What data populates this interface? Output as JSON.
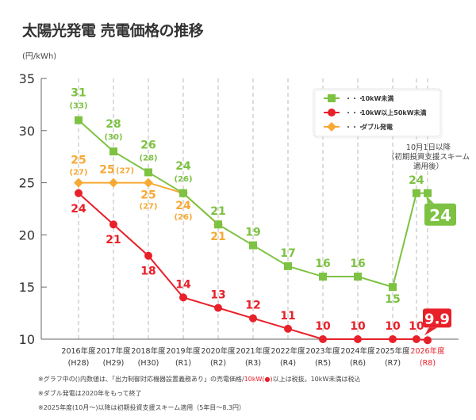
{
  "title": "太陽光発電 売電価格の推移",
  "unit": "(円/kWh)",
  "chart_data": {
    "type": "line",
    "title": "太陽光発電 売電価格の推移",
    "ylabel": "(円/kWh)",
    "ylim": [
      10,
      35
    ],
    "yticks": [
      35,
      30,
      25,
      20,
      15,
      10
    ],
    "grid": "vertical-dashed",
    "legend_position": "top-right",
    "categories": [
      {
        "year": "2016年度",
        "era": "(H28)"
      },
      {
        "year": "2017年度",
        "era": "(H29)"
      },
      {
        "year": "2018年度",
        "era": "(H30)"
      },
      {
        "year": "2019年度",
        "era": "(R1)"
      },
      {
        "year": "2020年度",
        "era": "(R2)"
      },
      {
        "year": "2021年度",
        "era": "(R3)"
      },
      {
        "year": "2022年度",
        "era": "(R4)"
      },
      {
        "year": "2023年度",
        "era": "(R5)"
      },
      {
        "year": "2024年度",
        "era": "(R6)"
      },
      {
        "year": "2025年度",
        "era": "(R7)"
      },
      {
        "year": "2026年度",
        "era": "(R8)",
        "highlight": true
      }
    ],
    "series": [
      {
        "name": "10kW未満",
        "color": "#7dc242",
        "marker": "square",
        "points": [
          {
            "x": 0,
            "y": 31,
            "label": "31",
            "sub": "(33)"
          },
          {
            "x": 1,
            "y": 28,
            "label": "28",
            "sub": "(30)"
          },
          {
            "x": 2,
            "y": 26,
            "label": "26",
            "sub": "(28)"
          },
          {
            "x": 3,
            "y": 24,
            "label": "24",
            "sub": "(26)"
          },
          {
            "x": 4,
            "y": 21,
            "label": "21"
          },
          {
            "x": 5,
            "y": 19,
            "label": "19"
          },
          {
            "x": 6,
            "y": 17,
            "label": "17"
          },
          {
            "x": 7,
            "y": 16,
            "label": "16"
          },
          {
            "x": 8,
            "y": 16,
            "label": "16"
          },
          {
            "x": 9,
            "y": 15,
            "label": "15",
            "label_below": true
          },
          {
            "x": 9.68,
            "y": 24,
            "label": "24"
          },
          {
            "x": 10,
            "y": 24,
            "callout": "24"
          }
        ]
      },
      {
        "name": "10kW以上50kW未満",
        "color": "#e8202a",
        "marker": "circle",
        "points": [
          {
            "x": 0,
            "y": 24,
            "label": "24"
          },
          {
            "x": 1,
            "y": 21,
            "label": "21"
          },
          {
            "x": 2,
            "y": 18,
            "label": "18"
          },
          {
            "x": 3,
            "y": 14,
            "label": "14"
          },
          {
            "x": 4,
            "y": 13,
            "label": "13"
          },
          {
            "x": 5,
            "y": 12,
            "label": "12"
          },
          {
            "x": 6,
            "y": 11,
            "label": "11"
          },
          {
            "x": 7,
            "y": 10,
            "label": "10"
          },
          {
            "x": 8,
            "y": 10,
            "label": "10"
          },
          {
            "x": 9,
            "y": 10,
            "label": "10"
          },
          {
            "x": 9.68,
            "y": 10,
            "label": "10"
          },
          {
            "x": 10,
            "y": 9.9,
            "callout": "9.9"
          }
        ]
      },
      {
        "name": "ダブル発電",
        "color": "#f7a935",
        "marker": "diamond",
        "points": [
          {
            "x": 0,
            "y": 25,
            "label": "25",
            "sub": "(27)"
          },
          {
            "x": 1,
            "y": 25,
            "label": "25",
            "sub": "(27)"
          },
          {
            "x": 2,
            "y": 25,
            "label": "25",
            "sub": "(27)"
          },
          {
            "x": 3,
            "y": 24,
            "label": "24",
            "sub": "(26)"
          },
          {
            "x": 4,
            "y": 21,
            "label": "21"
          }
        ]
      }
    ],
    "annotation": [
      "10月1日以降",
      "（初期投資支援スキーム",
      "適用後）"
    ],
    "legend_dots": "・・・"
  },
  "notes": {
    "line1_a": "※グラフ中の()内数値は、「出力制御対応機器設置義務あり」の売電価格/",
    "line1_red": "10kW(●)",
    "line1_b": "以上は税抜。10kW未満は税込",
    "line2": "※ダブル発電は2020年をもって終了",
    "line3": "※2025年度(10月～)以降は初期投資支援スキーム適用（5年目～8.3円）"
  }
}
